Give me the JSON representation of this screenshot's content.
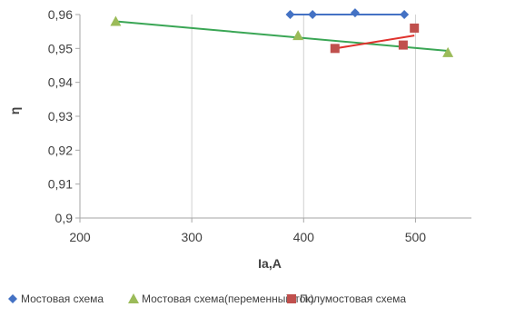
{
  "chart_data": {
    "type": "scatter",
    "xlabel": "Ia,A",
    "ylabel": "η",
    "xlim": [
      200,
      550
    ],
    "ylim": [
      0.9,
      0.96
    ],
    "xticks": [
      200,
      300,
      400,
      500
    ],
    "yticks": [
      0.9,
      0.91,
      0.92,
      0.93,
      0.94,
      0.95,
      0.96
    ],
    "xtick_labels": [
      "200",
      "300",
      "400",
      "500"
    ],
    "ytick_labels": [
      "0,9",
      "0,91",
      "0,92",
      "0,93",
      "0,94",
      "0,95",
      "0,96"
    ],
    "grid": {
      "vertical": true,
      "horizontal": false
    },
    "legend_position": "bottom",
    "series": [
      {
        "name": "Мостовая схема",
        "color": "#4472c4",
        "marker": "diamond",
        "points": [
          [
            388,
            0.96
          ],
          [
            408,
            0.96
          ],
          [
            446,
            0.9605
          ],
          [
            490,
            0.96
          ]
        ],
        "line": [
          [
            388,
            0.96
          ],
          [
            490,
            0.96
          ]
        ]
      },
      {
        "name": "Мостовая схема(переменный ток)",
        "color": "#9bbb59",
        "line_color": "#3aa655",
        "marker": "triangle",
        "points": [
          [
            232,
            0.958
          ],
          [
            395,
            0.9538
          ],
          [
            529,
            0.9488
          ]
        ],
        "line": [
          [
            232,
            0.958
          ],
          [
            529,
            0.9493
          ]
        ]
      },
      {
        "name": "Полумостовая схема",
        "color": "#c0504d",
        "line_color": "#e0322d",
        "marker": "square",
        "points": [
          [
            428,
            0.95
          ],
          [
            489,
            0.951
          ],
          [
            499,
            0.956
          ]
        ],
        "line": [
          [
            428,
            0.95
          ],
          [
            499,
            0.9538
          ]
        ]
      }
    ]
  }
}
